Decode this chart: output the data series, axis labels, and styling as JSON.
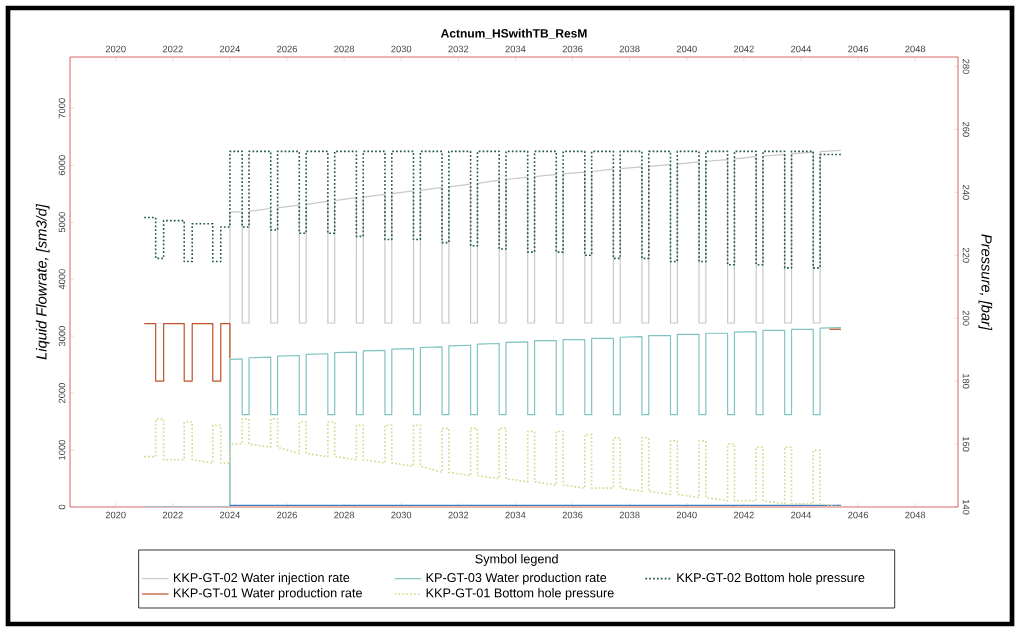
{
  "chart_data": {
    "type": "line",
    "title": "Actnum_HSwithTB_ResM",
    "ylabel": "Liquid Flowrate, [sm3/d]",
    "y2label": "Pressure, [bar]",
    "legend_title": "Symbol legend",
    "legend": "bottom",
    "xlim": [
      2018.4,
      2049.5
    ],
    "xticks": [
      2020,
      2022,
      2024,
      2026,
      2028,
      2030,
      2032,
      2034,
      2036,
      2038,
      2040,
      2042,
      2044,
      2046,
      2048
    ],
    "x2lim": [
      2018.4,
      2049.5
    ],
    "x2ticks": [
      2020,
      2022,
      2024,
      2026,
      2028,
      2030,
      2032,
      2034,
      2036,
      2038,
      2040,
      2042,
      2044,
      2046,
      2048
    ],
    "ylim": [
      0,
      7900
    ],
    "yticks": [
      0,
      1000,
      2000,
      3000,
      4000,
      5000,
      6000,
      7000
    ],
    "y2lim": [
      140,
      283
    ],
    "y2ticks": [
      140,
      160,
      180,
      200,
      220,
      240,
      260,
      280
    ],
    "x": [
      2021,
      2021.4,
      2021.4,
      2021.68,
      2021.68,
      2022.4,
      2022.4,
      2022.68,
      2022.68,
      2023.4,
      2023.4,
      2023.68,
      2023.68,
      2024,
      2024,
      2024.43,
      2024.43,
      2024.67,
      2024.67,
      2025.43,
      2025.43,
      2025.67,
      2025.67,
      2026.43,
      2026.43,
      2026.67,
      2026.67,
      2027.43,
      2027.43,
      2027.67,
      2027.67,
      2028.43,
      2028.43,
      2028.67,
      2028.67,
      2029.43,
      2029.43,
      2029.67,
      2029.67,
      2030.43,
      2030.43,
      2030.67,
      2030.67,
      2031.43,
      2031.43,
      2031.67,
      2031.67,
      2032.43,
      2032.43,
      2032.67,
      2032.67,
      2033.43,
      2033.43,
      2033.67,
      2033.67,
      2034.43,
      2034.43,
      2034.67,
      2034.67,
      2035.43,
      2035.43,
      2035.67,
      2035.67,
      2036.43,
      2036.43,
      2036.67,
      2036.67,
      2037.43,
      2037.43,
      2037.67,
      2037.67,
      2038.43,
      2038.43,
      2038.67,
      2038.67,
      2039.43,
      2039.43,
      2039.67,
      2039.67,
      2040.43,
      2040.43,
      2040.67,
      2040.67,
      2041.43,
      2041.43,
      2041.67,
      2041.67,
      2042.43,
      2042.43,
      2042.67,
      2042.67,
      2043.43,
      2043.43,
      2043.67,
      2043.67,
      2044.43,
      2044.43,
      2044.67,
      2044.67,
      2045.4
    ],
    "series": [
      {
        "name": "KKP-GT-02 Water injection rate",
        "color": "#c8c8c8",
        "line_style": "solid",
        "values": [
          0,
          0,
          0,
          0,
          0,
          0,
          0,
          0,
          0,
          0,
          0,
          0,
          0,
          0,
          5180,
          5180,
          3230,
          3230,
          5190,
          5240,
          3230,
          3230,
          5250,
          5300,
          3230,
          3230,
          5310,
          5370,
          3230,
          3230,
          5380,
          5430,
          3230,
          3230,
          5440,
          5490,
          3230,
          3230,
          5500,
          5550,
          3230,
          3230,
          5560,
          5610,
          3230,
          3230,
          5620,
          5670,
          3230,
          3230,
          5680,
          5740,
          3230,
          3230,
          5750,
          5790,
          3230,
          3230,
          5800,
          5840,
          3230,
          3230,
          5850,
          5880,
          3230,
          3230,
          5890,
          5930,
          3230,
          3230,
          5940,
          5970,
          3230,
          3230,
          5980,
          6010,
          3230,
          3230,
          6020,
          6060,
          3230,
          3230,
          6070,
          6100,
          3230,
          3230,
          6110,
          6150,
          3230,
          3230,
          6160,
          6190,
          3230,
          3230,
          6200,
          6230,
          3230,
          3230,
          6240,
          6260
        ]
      },
      {
        "name": "KP-GT-03 Water production rate",
        "color": "#7fc4c0",
        "line_style": "solid",
        "values": [
          0,
          0,
          0,
          0,
          0,
          0,
          0,
          0,
          0,
          0,
          0,
          0,
          0,
          0,
          2590,
          2600,
          1620,
          1620,
          2620,
          2630,
          1620,
          1620,
          2650,
          2660,
          1620,
          1620,
          2680,
          2690,
          1620,
          1620,
          2710,
          2720,
          1620,
          1620,
          2740,
          2750,
          1620,
          1620,
          2770,
          2780,
          1620,
          1620,
          2800,
          2810,
          1620,
          1620,
          2830,
          2840,
          1620,
          1620,
          2860,
          2870,
          1620,
          1620,
          2890,
          2900,
          1620,
          1620,
          2920,
          2920,
          1620,
          1620,
          2940,
          2940,
          1620,
          1620,
          2960,
          2960,
          1620,
          1620,
          2980,
          2990,
          1620,
          1620,
          3010,
          3010,
          1620,
          1620,
          3030,
          3030,
          1620,
          1620,
          3050,
          3050,
          1620,
          1620,
          3070,
          3080,
          1620,
          1620,
          3100,
          3100,
          1620,
          1620,
          3120,
          3120,
          1620,
          1620,
          3140,
          3150
        ]
      },
      {
        "name": "KKP-GT-02 Bottom hole pressure",
        "color": "#1e5a46",
        "line_style": "dotted",
        "axis": "y2",
        "values": [
          232,
          232,
          219,
          219,
          231,
          231,
          218,
          218,
          230,
          230,
          218,
          218,
          229,
          229,
          253,
          253,
          229,
          229,
          253,
          253,
          228,
          228,
          253,
          253,
          227,
          227,
          253,
          253,
          227,
          227,
          253,
          253,
          226,
          226,
          253,
          253,
          225,
          225,
          253,
          253,
          225,
          225,
          253,
          253,
          224,
          224,
          253,
          253,
          223,
          223,
          253,
          253,
          222,
          222,
          253,
          253,
          221,
          221,
          253,
          253,
          221,
          221,
          253,
          253,
          220,
          220,
          253,
          253,
          219,
          219,
          253,
          253,
          219,
          219,
          253,
          253,
          218,
          218,
          253,
          253,
          218,
          218,
          253,
          253,
          217,
          217,
          253,
          253,
          217,
          217,
          253,
          253,
          216,
          216,
          253,
          253,
          216,
          216,
          252,
          252
        ]
      },
      {
        "name": "KKP-GT-01 Water production rate",
        "color": "#c0502a",
        "line_style": "solid",
        "x": [
          2021,
          2021.4,
          2021.4,
          2021.68,
          2021.68,
          2022.4,
          2022.4,
          2022.68,
          2022.68,
          2023.4,
          2023.4,
          2023.68,
          2023.68,
          2024,
          2024
        ],
        "values": [
          3220,
          3220,
          2210,
          2210,
          3220,
          3220,
          2210,
          2210,
          3220,
          3220,
          2210,
          2210,
          3220,
          3220,
          2610
        ]
      },
      {
        "color": "#c0502a",
        "line_style": "solid",
        "x": [
          2045,
          2045.4
        ],
        "values": [
          3120,
          3120
        ]
      },
      {
        "name": "KKP-GT-01 Bottom hole pressure",
        "color": "#d8d890",
        "line_style": "dotted",
        "axis": "y2",
        "values": [
          156,
          156,
          168,
          168,
          155,
          155,
          167,
          167,
          155,
          154,
          166,
          166,
          154,
          154,
          160,
          160,
          168,
          168,
          160,
          159,
          168,
          168,
          159,
          157,
          167,
          167,
          157,
          156,
          167,
          167,
          156,
          155,
          166,
          166,
          155,
          154,
          166,
          166,
          154,
          153,
          166,
          166,
          153,
          151,
          165,
          165,
          151,
          150,
          165,
          165,
          150,
          149,
          165,
          165,
          149,
          148,
          164,
          164,
          148,
          147,
          164,
          164,
          147,
          146,
          163,
          163,
          146,
          146,
          162,
          162,
          146,
          145,
          162,
          162,
          145,
          144,
          161,
          161,
          144,
          143,
          161,
          161,
          143,
          142,
          160,
          160,
          142,
          142,
          159,
          159,
          142,
          141,
          159,
          159,
          141,
          141,
          158,
          158,
          141,
          140
        ]
      },
      {
        "color": "#3a7fc0",
        "line_style": "solid",
        "x": [
          2024,
          2045.4
        ],
        "values": [
          30,
          30
        ]
      }
    ]
  }
}
